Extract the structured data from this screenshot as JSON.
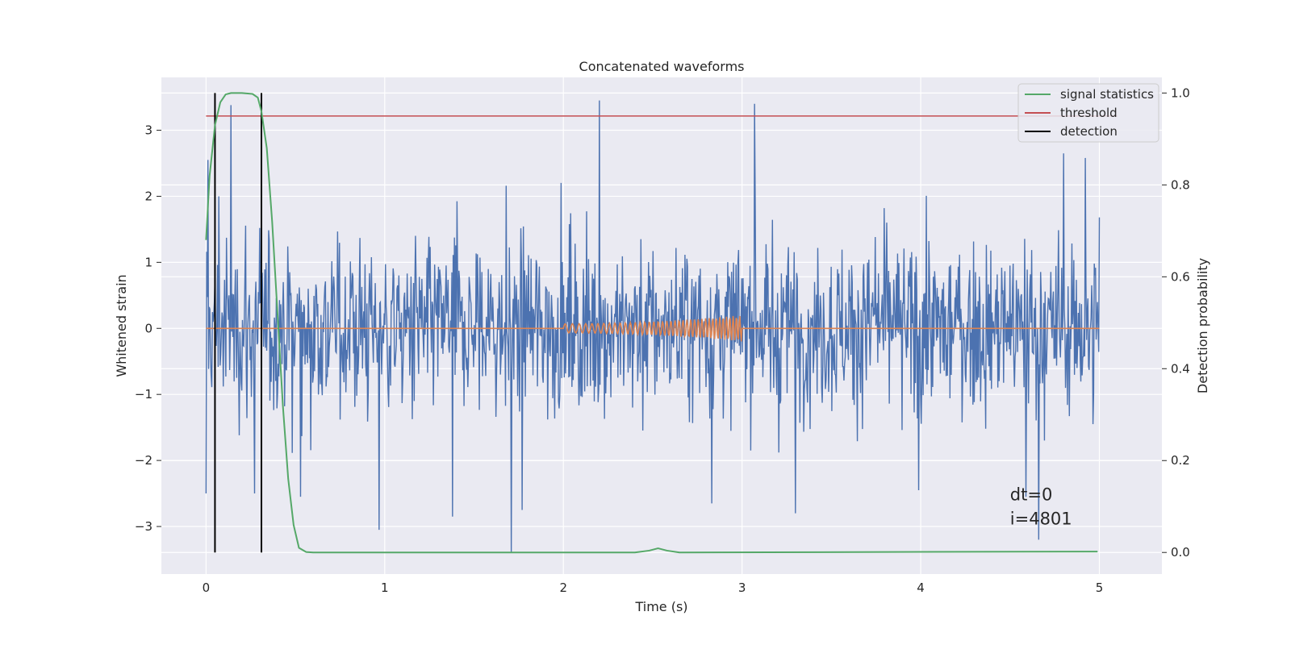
{
  "chart_data": {
    "type": "line",
    "title": "Concatenated waveforms",
    "xlabel": "Time (s)",
    "ylabel": "Whitened strain",
    "y2label": "Detection probability",
    "xlim": [
      -0.25,
      5.35
    ],
    "ylim": [
      -3.72,
      3.8
    ],
    "y2lim": [
      -0.047,
      1.034
    ],
    "xticks": [
      0,
      1,
      2,
      3,
      4,
      5
    ],
    "yticks": [
      -3,
      -2,
      -1,
      0,
      1,
      2,
      3
    ],
    "y2ticks": [
      0.0,
      0.2,
      0.4,
      0.6,
      0.8,
      1.0
    ],
    "xtick_labels": [
      "0",
      "1",
      "2",
      "3",
      "4",
      "5"
    ],
    "ytick_labels": [
      "−3",
      "−2",
      "−1",
      "0",
      "1",
      "2",
      "3"
    ],
    "y2tick_labels": [
      "0.0",
      "0.2",
      "0.4",
      "0.6",
      "0.8",
      "1.0"
    ],
    "grid": true,
    "legend_position": "top-right",
    "background": "#eaeaf2",
    "noise": {
      "x_range": [
        0,
        5
      ],
      "samples": 1400,
      "envelope_max": 3.45,
      "envelope_min": -3.4,
      "color": "#4c72b0",
      "spikes": [
        {
          "x": 0.01,
          "y": 2.55
        },
        {
          "x": 0.07,
          "y": 2.0
        },
        {
          "x": 0.14,
          "y": 3.38
        },
        {
          "x": 0.3,
          "y": 1.52
        },
        {
          "x": 0.27,
          "y": -2.5
        },
        {
          "x": 0.53,
          "y": -2.55
        },
        {
          "x": 0.97,
          "y": -3.05
        },
        {
          "x": 1.38,
          "y": -2.85
        },
        {
          "x": 1.71,
          "y": -3.4
        },
        {
          "x": 1.77,
          "y": -2.75
        },
        {
          "x": 2.2,
          "y": 3.45
        },
        {
          "x": 2.83,
          "y": -2.65
        },
        {
          "x": 3.07,
          "y": 3.4
        },
        {
          "x": 3.3,
          "y": -2.8
        },
        {
          "x": 3.99,
          "y": -2.45
        },
        {
          "x": 4.59,
          "y": -2.55
        },
        {
          "x": 4.66,
          "y": -3.2
        },
        {
          "x": 4.8,
          "y": 2.65
        },
        {
          "x": 4.92,
          "y": 2.58
        },
        {
          "x": 5.0,
          "y": 1.68
        },
        {
          "x": 0.0,
          "y": -2.5
        }
      ]
    },
    "chirp": {
      "x_range": [
        2,
        3
      ],
      "amp_start": 0.07,
      "amp_end": 0.2,
      "cycles": 40,
      "color": "#dd8452"
    },
    "threshold": {
      "x_range": [
        0,
        5.1
      ],
      "y": 0.95
    },
    "detections": [
      {
        "x": 0.05,
        "y_range": [
          0.0,
          1.0
        ]
      },
      {
        "x": 0.31,
        "y_range": [
          0.0,
          1.0
        ]
      }
    ],
    "signal_statistics": {
      "x": [
        0,
        0.02,
        0.05,
        0.08,
        0.11,
        0.14,
        0.2,
        0.26,
        0.29,
        0.31,
        0.34,
        0.37,
        0.4,
        0.43,
        0.46,
        0.49,
        0.52,
        0.56,
        0.6,
        2.4,
        2.48,
        2.53,
        2.58,
        2.65,
        4.99
      ],
      "y": [
        0.68,
        0.82,
        0.93,
        0.98,
        0.997,
        1.0,
        1.0,
        0.998,
        0.99,
        0.96,
        0.88,
        0.72,
        0.52,
        0.32,
        0.16,
        0.06,
        0.01,
        0.001,
        0.0,
        0.0,
        0.004,
        0.009,
        0.004,
        0.0,
        0.002
      ]
    },
    "annotations": [
      "dt=0",
      "i=4801"
    ],
    "annotation_pos": {
      "x": 4.5,
      "y": -2.6
    },
    "legend": [
      {
        "label": "signal statistics",
        "color": "#55a868"
      },
      {
        "label": "threshold",
        "color": "#c44e52"
      },
      {
        "label": "detection",
        "color": "#000000"
      }
    ]
  }
}
